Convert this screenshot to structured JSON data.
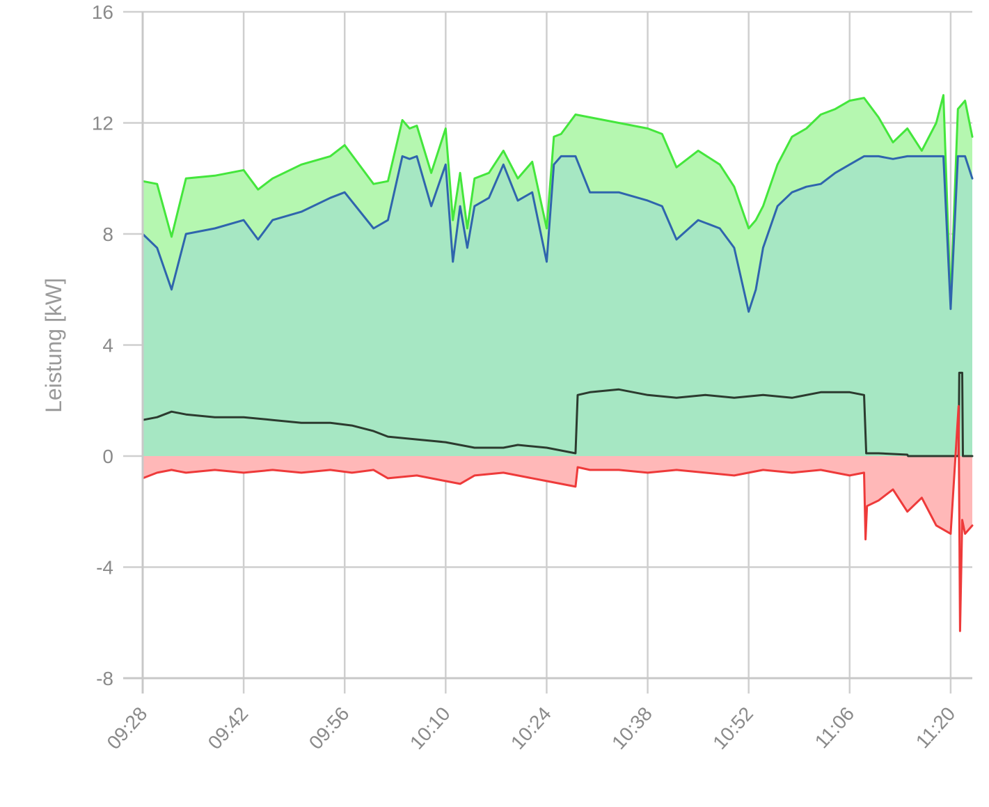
{
  "chart_data": {
    "type": "area",
    "title": "",
    "xlabel": "",
    "ylabel": "Leistung [kW]",
    "ylim": [
      -8,
      16
    ],
    "yticks": [
      16,
      12,
      8,
      4,
      0,
      -4,
      -8
    ],
    "ytick_labels": [
      "16",
      "12",
      "8",
      "4",
      "0",
      "-4",
      "-8"
    ],
    "xlim_minutes": [
      568,
      683
    ],
    "xticks_minutes": [
      568,
      582,
      596,
      610,
      624,
      638,
      652,
      666,
      680
    ],
    "xtick_labels": [
      "09:28",
      "09:42",
      "09:56",
      "10:10",
      "10:24",
      "10:38",
      "10:52",
      "11:06",
      "11:20"
    ],
    "grid": true,
    "legend": "none",
    "series": [
      {
        "name": "green",
        "color": "#44e63c",
        "fill": "#b5f7b0",
        "x": [
          568,
          570,
          572,
          574,
          578,
          582,
          584,
          586,
          590,
          594,
          596,
          600,
          602,
          604,
          605,
          606,
          608,
          610,
          611,
          612,
          613,
          614,
          616,
          618,
          620,
          622,
          624,
          625,
          626,
          628,
          630,
          634,
          638,
          640,
          642,
          645,
          648,
          650,
          652,
          653,
          654,
          656,
          658,
          660,
          662,
          664,
          666,
          668,
          670,
          672,
          674,
          676,
          678,
          679,
          680,
          681,
          682,
          683
        ],
        "y": [
          9.9,
          9.8,
          7.9,
          10.0,
          10.1,
          10.3,
          9.6,
          10.0,
          10.5,
          10.8,
          11.2,
          9.8,
          9.9,
          12.1,
          11.8,
          11.9,
          10.2,
          11.8,
          8.5,
          10.2,
          8.2,
          10.0,
          10.2,
          11.0,
          10.0,
          10.6,
          8.2,
          11.5,
          11.6,
          12.3,
          12.2,
          12.0,
          11.8,
          11.6,
          10.4,
          11.0,
          10.5,
          9.7,
          8.2,
          8.5,
          9.0,
          10.5,
          11.5,
          11.8,
          12.3,
          12.5,
          12.8,
          12.9,
          12.2,
          11.3,
          11.8,
          11.0,
          12.0,
          13.0,
          5.5,
          12.5,
          12.8,
          11.5
        ]
      },
      {
        "name": "blue",
        "color": "#2f65ad",
        "fill": "#a6e7c3",
        "x": [
          568,
          570,
          572,
          574,
          578,
          582,
          584,
          586,
          590,
          594,
          596,
          600,
          602,
          604,
          605,
          606,
          608,
          610,
          611,
          612,
          613,
          614,
          616,
          618,
          620,
          622,
          624,
          625,
          626,
          628,
          630,
          634,
          638,
          640,
          642,
          645,
          648,
          650,
          652,
          653,
          654,
          656,
          658,
          660,
          662,
          664,
          666,
          668,
          670,
          672,
          674,
          676,
          678,
          679,
          680,
          681,
          682,
          683
        ],
        "y": [
          8.0,
          7.5,
          6.0,
          8.0,
          8.2,
          8.5,
          7.8,
          8.5,
          8.8,
          9.3,
          9.5,
          8.2,
          8.5,
          10.8,
          10.7,
          10.8,
          9.0,
          10.5,
          7.0,
          9.0,
          7.5,
          9.0,
          9.3,
          10.5,
          9.2,
          9.5,
          7.0,
          10.5,
          10.8,
          10.8,
          9.5,
          9.5,
          9.2,
          9.0,
          7.8,
          8.5,
          8.2,
          7.5,
          5.2,
          6.0,
          7.5,
          9.0,
          9.5,
          9.7,
          9.8,
          10.2,
          10.5,
          10.8,
          10.8,
          10.7,
          10.8,
          10.8,
          10.8,
          10.8,
          5.3,
          10.8,
          10.8,
          10.0
        ]
      },
      {
        "name": "dark",
        "color": "#2c3b2f",
        "fill": "",
        "x": [
          568,
          570,
          572,
          574,
          578,
          582,
          586,
          590,
          594,
          597,
          600,
          602,
          606,
          610,
          614,
          618,
          620,
          624,
          626,
          628,
          628.3,
          630,
          634,
          638,
          642,
          646,
          650,
          654,
          658,
          662,
          666,
          668,
          668.3,
          670,
          674,
          674.1,
          680,
          681.1,
          681.2,
          681.6,
          681.7,
          683
        ],
        "y": [
          1.3,
          1.4,
          1.6,
          1.5,
          1.4,
          1.4,
          1.3,
          1.2,
          1.2,
          1.1,
          0.9,
          0.7,
          0.6,
          0.5,
          0.3,
          0.3,
          0.4,
          0.3,
          0.2,
          0.1,
          2.2,
          2.3,
          2.4,
          2.2,
          2.1,
          2.2,
          2.1,
          2.2,
          2.1,
          2.3,
          2.3,
          2.2,
          0.1,
          0.1,
          0.05,
          0.0,
          0.0,
          0.0,
          3.0,
          3.0,
          0.0,
          0.0
        ]
      },
      {
        "name": "red",
        "color": "#ee3a3a",
        "fill": "#ffb8b8",
        "x": [
          568,
          570,
          572,
          574,
          578,
          582,
          586,
          590,
          594,
          597,
          600,
          602,
          606,
          610,
          612,
          614,
          618,
          620,
          624,
          626,
          628,
          628.3,
          630,
          634,
          638,
          642,
          646,
          650,
          654,
          658,
          662,
          666,
          668,
          668.2,
          668.4,
          670,
          672,
          674,
          676,
          678,
          680,
          681.1,
          681.3,
          681.6,
          682,
          683
        ],
        "y": [
          -0.8,
          -0.6,
          -0.5,
          -0.6,
          -0.5,
          -0.6,
          -0.5,
          -0.6,
          -0.5,
          -0.6,
          -0.5,
          -0.8,
          -0.7,
          -0.9,
          -1.0,
          -0.7,
          -0.6,
          -0.7,
          -0.9,
          -1.0,
          -1.1,
          -0.4,
          -0.5,
          -0.5,
          -0.6,
          -0.5,
          -0.6,
          -0.7,
          -0.5,
          -0.6,
          -0.5,
          -0.7,
          -0.6,
          -3.0,
          -1.8,
          -1.6,
          -1.2,
          -2.0,
          -1.5,
          -2.5,
          -2.8,
          1.8,
          -6.3,
          -2.3,
          -2.8,
          -2.5
        ]
      }
    ]
  }
}
